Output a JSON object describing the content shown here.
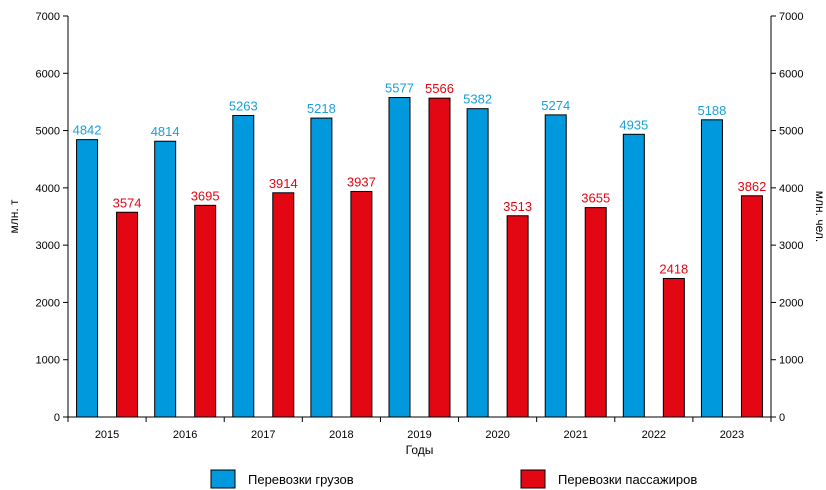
{
  "chart_data": {
    "type": "bar",
    "categories": [
      "2015",
      "2016",
      "2017",
      "2018",
      "2019",
      "2020",
      "2021",
      "2022",
      "2023"
    ],
    "series": [
      {
        "name": "Перевозки грузов",
        "axis": "left",
        "color": "#0099dd",
        "label_color": "#1a9fd9",
        "values": [
          4842,
          4814,
          5263,
          5218,
          5577,
          5382,
          5274,
          4935,
          5188
        ]
      },
      {
        "name": "Перевозки пассажиров",
        "axis": "right",
        "color": "#e30613",
        "label_color": "#e30613",
        "values": [
          3574,
          3695,
          3914,
          3937,
          5566,
          3513,
          3655,
          2418,
          3862
        ]
      }
    ],
    "xlabel": "Годы",
    "ylabel": "млн. т",
    "ylabel_right": "млн. чел.",
    "ylim": [
      0,
      7000
    ],
    "yticks": [
      "0",
      "1000",
      "2000",
      "3000",
      "4000",
      "5000",
      "6000",
      "7000"
    ],
    "grid": false,
    "legend_position": "bottom"
  }
}
